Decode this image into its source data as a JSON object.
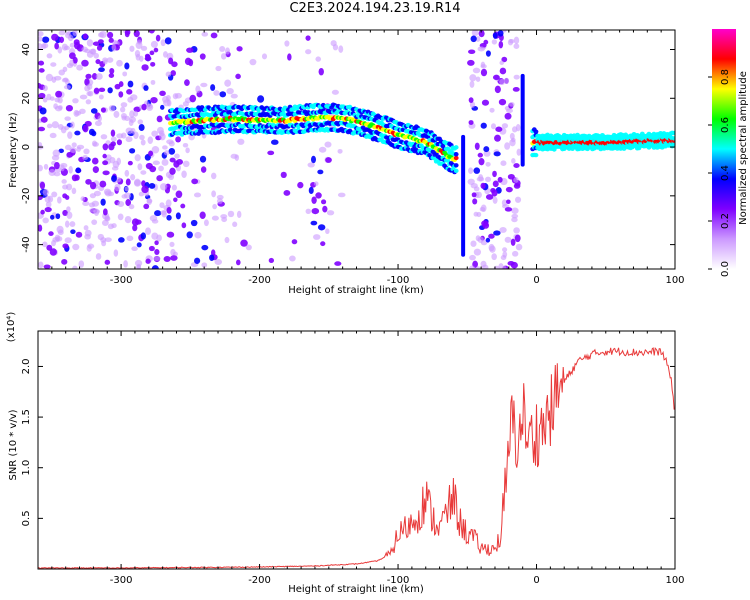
{
  "title": "C2E3.2024.194.23.19.R14",
  "chart_data": [
    {
      "type": "heatmap",
      "xlabel": "Height of straight line (km)",
      "ylabel": "Frequency (Hz)",
      "xlim": [
        -360,
        100
      ],
      "ylim": [
        -50,
        48
      ],
      "xticks": [
        -300,
        -200,
        -100,
        0,
        100
      ],
      "yticks": [
        -40,
        -20,
        0,
        20,
        40
      ],
      "colorbar": {
        "label": "Normalized spectral amplitude",
        "range": [
          0,
          1
        ],
        "ticks": [
          "0.0",
          "0.2",
          "0.4",
          "0.6",
          "0.8"
        ],
        "tick_values": [
          0.0,
          0.2,
          0.4,
          0.6,
          0.8
        ],
        "colors": [
          "#ffffff",
          "#cc99ff",
          "#7f00ff",
          "#0000ff",
          "#00ffff",
          "#00ff00",
          "#ffff00",
          "#ff0000",
          "#ff00cc"
        ]
      },
      "ridge_points": [
        {
          "x": -265,
          "y": 10
        },
        {
          "x": -240,
          "y": 11
        },
        {
          "x": -220,
          "y": 11.5
        },
        {
          "x": -200,
          "y": 11
        },
        {
          "x": -180,
          "y": 11
        },
        {
          "x": -160,
          "y": 12
        },
        {
          "x": -140,
          "y": 12
        },
        {
          "x": -120,
          "y": 9
        },
        {
          "x": -100,
          "y": 5
        },
        {
          "x": -80,
          "y": 2
        },
        {
          "x": -60,
          "y": -5
        },
        {
          "x": 0,
          "y": 2
        },
        {
          "x": 50,
          "y": 2
        },
        {
          "x": 100,
          "y": 3
        }
      ]
    },
    {
      "type": "line",
      "xlabel": "Height of straight line (km)",
      "ylabel": "SNR (10 * v/v)",
      "y_exponent_label": "(x10⁴)",
      "xlim": [
        -360,
        100
      ],
      "ylim": [
        0,
        2.35
      ],
      "xticks": [
        -300,
        -200,
        -100,
        0,
        100
      ],
      "yticks": [
        0.5,
        1.0,
        1.5,
        2.0
      ],
      "ytick_labels": [
        "0.5",
        "1.0",
        "1.5",
        "2.0"
      ],
      "color": "#e83a3a",
      "series": [
        {
          "x": [
            -360,
            -300,
            -250,
            -200,
            -160,
            -130,
            -115,
            -105,
            -100,
            -95,
            -90,
            -85,
            -80,
            -75,
            -70,
            -65,
            -60,
            -55,
            -50,
            -45,
            -40,
            -35,
            -30,
            -25,
            -22,
            -20,
            -17,
            -15,
            -12,
            -10,
            -7,
            -5,
            0,
            5,
            10,
            15,
            20,
            25,
            30,
            40,
            50,
            60,
            70,
            80,
            90,
            95,
            98,
            100
          ],
          "y": [
            0.01,
            0.01,
            0.015,
            0.02,
            0.03,
            0.05,
            0.08,
            0.15,
            0.35,
            0.4,
            0.45,
            0.55,
            0.7,
            0.5,
            0.4,
            0.55,
            0.7,
            0.45,
            0.35,
            0.3,
            0.2,
            0.2,
            0.2,
            0.35,
            0.8,
            1.2,
            1.5,
            1.3,
            1.3,
            1.6,
            1.3,
            1.25,
            1.35,
            1.4,
            1.55,
            1.75,
            1.85,
            1.95,
            2.05,
            2.12,
            2.15,
            2.15,
            2.14,
            2.14,
            2.15,
            2.0,
            1.8,
            1.5
          ]
        }
      ]
    }
  ]
}
